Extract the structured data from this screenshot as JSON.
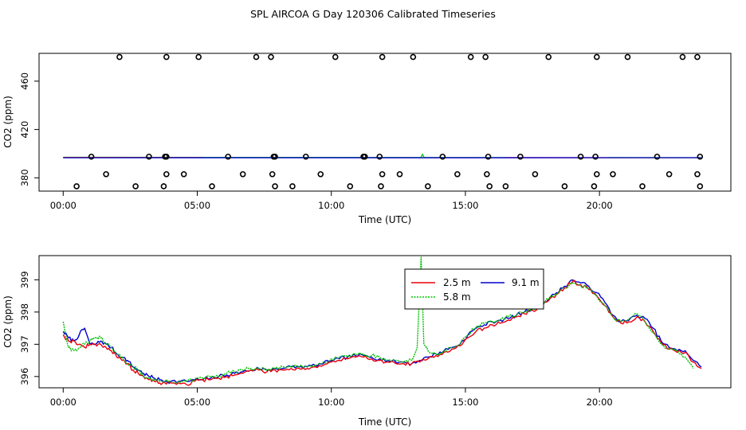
{
  "title": "SPL AIRCOA G  Day 120306  Calibrated Timeseries",
  "colors": {
    "red": "#e8000b",
    "green": "#00c000",
    "blue": "#0000d0",
    "markers": "#000000"
  },
  "chart_data": [
    {
      "type": "scatter",
      "name": "top-panel",
      "xlabel": "Time (UTC)",
      "ylabel": "CO2 (ppm)",
      "xlim": [
        -0.9,
        24.9
      ],
      "ylim": [
        369,
        483
      ],
      "xticks": [
        0,
        5,
        10,
        15,
        20
      ],
      "xtick_labels": [
        "00:00",
        "05:00",
        "10:00",
        "15:00",
        "20:00"
      ],
      "yticks": [
        380,
        420,
        460
      ],
      "ytick_labels": [
        "380",
        "420",
        "460"
      ],
      "calibration_points": [
        {
          "level": 480,
          "t": [
            2.1,
            3.85,
            5.05,
            7.2,
            7.75,
            10.15,
            11.9,
            13.05,
            15.2,
            15.75,
            18.1,
            19.9,
            21.05,
            23.1,
            23.65
          ]
        },
        {
          "level": 397.5,
          "t": [
            1.05,
            3.2,
            3.8,
            3.85,
            6.15,
            7.85,
            7.9,
            9.05,
            11.2,
            11.25,
            11.8,
            14.15,
            15.85,
            17.05,
            19.3,
            19.85,
            22.15,
            23.75
          ]
        },
        {
          "level": 383,
          "t": [
            1.6,
            3.85,
            4.5,
            6.7,
            7.8,
            9.6,
            11.9,
            12.55,
            14.7,
            15.8,
            17.6,
            19.9,
            20.5,
            22.6,
            23.65
          ]
        },
        {
          "level": 373,
          "t": [
            0.5,
            2.7,
            3.75,
            5.55,
            7.9,
            8.55,
            10.7,
            11.85,
            13.6,
            15.9,
            16.5,
            18.7,
            19.8,
            21.6,
            23.75
          ]
        }
      ],
      "series_level": 397,
      "series_spike": {
        "t": 13.4,
        "value": 399.5
      }
    },
    {
      "type": "line",
      "name": "bottom-panel",
      "xlabel": "Time (UTC)",
      "ylabel": "CO2 (ppm)",
      "xlim": [
        -0.9,
        24.9
      ],
      "ylim": [
        395.65,
        399.75
      ],
      "xticks": [
        0,
        5,
        10,
        15,
        20
      ],
      "xtick_labels": [
        "00:00",
        "05:00",
        "10:00",
        "15:00",
        "20:00"
      ],
      "yticks": [
        396,
        397,
        398,
        399
      ],
      "ytick_labels": [
        "396",
        "397",
        "398",
        "399"
      ],
      "legend": [
        {
          "label": "2.5 m",
          "color": "#e8000b"
        },
        {
          "label": "5.8 m",
          "color": "#00c000"
        },
        {
          "label": "9.1 m",
          "color": "#0000d0"
        }
      ],
      "series": [
        {
          "name": "9.1 m",
          "color": "#0000d0",
          "t": [
            0,
            0.2,
            0.4,
            0.6,
            0.8,
            1,
            1.2,
            1.4,
            1.6,
            1.8,
            2,
            2.2,
            2.4,
            2.6,
            2.8,
            3,
            3.2,
            3.4,
            3.6,
            3.8,
            4,
            4.3,
            4.6,
            4.9,
            5.2,
            5.5,
            5.8,
            6.1,
            6.4,
            6.7,
            7,
            7.3,
            7.6,
            7.9,
            8.2,
            8.5,
            8.8,
            9.1,
            9.4,
            9.7,
            10,
            10.3,
            10.6,
            10.9,
            11.2,
            11.5,
            11.8,
            12.1,
            12.4,
            12.7,
            13,
            13.3,
            13.6,
            13.9,
            14.2,
            14.5,
            14.8,
            15.1,
            15.4,
            15.7,
            16,
            16.3,
            16.6,
            16.9,
            17.2,
            17.5,
            17.8,
            18.1,
            18.4,
            18.7,
            19,
            19.3,
            19.6,
            19.9,
            20.2,
            20.5,
            20.8,
            21.1,
            21.4,
            21.7,
            22,
            22.3,
            22.6,
            22.9,
            23.2,
            23.5,
            23.8
          ],
          "v": [
            397.4,
            397.2,
            397.1,
            397.3,
            397.5,
            397.0,
            397.0,
            397.1,
            397.0,
            396.9,
            396.7,
            396.6,
            396.5,
            396.3,
            396.2,
            396.1,
            396.0,
            395.95,
            395.9,
            395.85,
            395.85,
            395.85,
            395.85,
            395.9,
            395.9,
            395.95,
            396.0,
            396.05,
            396.1,
            396.15,
            396.2,
            396.25,
            396.2,
            396.25,
            396.25,
            396.3,
            396.3,
            396.3,
            396.35,
            396.4,
            396.5,
            396.55,
            396.6,
            396.65,
            396.65,
            396.6,
            396.55,
            396.5,
            396.45,
            396.45,
            396.4,
            396.5,
            396.6,
            396.7,
            396.8,
            396.9,
            397.0,
            397.3,
            397.5,
            397.6,
            397.7,
            397.75,
            397.8,
            397.9,
            398.0,
            398.1,
            398.2,
            398.4,
            398.6,
            398.8,
            399.0,
            398.9,
            398.8,
            398.6,
            398.3,
            397.9,
            397.7,
            397.75,
            397.9,
            397.8,
            397.5,
            397.1,
            396.9,
            396.8,
            396.8,
            396.5,
            396.3
          ],
          "noise": 0.12,
          "seed": 7
        },
        {
          "name": "2.5 m",
          "color": "#e8000b",
          "t": [
            0,
            0.2,
            0.4,
            0.6,
            0.8,
            1,
            1.2,
            1.4,
            1.6,
            1.8,
            2,
            2.2,
            2.4,
            2.6,
            2.8,
            3,
            3.2,
            3.4,
            3.6,
            3.8,
            4,
            4.3,
            4.6,
            4.9,
            5.2,
            5.5,
            5.8,
            6.1,
            6.4,
            6.7,
            7,
            7.3,
            7.6,
            7.9,
            8.2,
            8.5,
            8.8,
            9.1,
            9.4,
            9.7,
            10,
            10.3,
            10.6,
            10.9,
            11.2,
            11.5,
            11.8,
            12.1,
            12.4,
            12.7,
            13,
            13.3,
            13.6,
            13.9,
            14.2,
            14.5,
            14.8,
            15.1,
            15.4,
            15.7,
            16,
            16.3,
            16.6,
            16.9,
            17.2,
            17.5,
            17.8,
            18.1,
            18.4,
            18.7,
            19,
            19.3,
            19.6,
            19.9,
            20.2,
            20.5,
            20.8,
            21.1,
            21.4,
            21.7,
            22,
            22.3,
            22.6,
            22.9,
            23.2,
            23.5,
            23.8
          ],
          "v": [
            397.3,
            397.1,
            397.1,
            397.0,
            396.9,
            397.0,
            397.0,
            397.0,
            396.9,
            396.8,
            396.6,
            396.5,
            396.4,
            396.2,
            396.1,
            396.0,
            395.9,
            395.85,
            395.8,
            395.8,
            395.8,
            395.8,
            395.75,
            395.85,
            395.9,
            395.9,
            395.95,
            396.0,
            396.05,
            396.1,
            396.2,
            396.2,
            396.15,
            396.2,
            396.2,
            396.25,
            396.25,
            396.25,
            396.3,
            396.35,
            396.45,
            396.5,
            396.55,
            396.6,
            396.6,
            396.55,
            396.5,
            396.45,
            396.4,
            396.4,
            396.4,
            396.45,
            396.55,
            396.65,
            396.75,
            396.85,
            396.95,
            397.2,
            397.4,
            397.5,
            397.6,
            397.65,
            397.75,
            397.85,
            397.95,
            398.05,
            398.15,
            398.35,
            398.55,
            398.75,
            398.95,
            398.85,
            398.7,
            398.5,
            398.2,
            397.85,
            397.65,
            397.7,
            397.85,
            397.7,
            397.4,
            397.05,
            396.85,
            396.75,
            396.75,
            396.45,
            396.25
          ],
          "noise": 0.12,
          "seed": 19
        },
        {
          "name": "5.8 m",
          "color": "#00c000",
          "dashed": true,
          "t": [
            0,
            0.2,
            0.4,
            0.6,
            0.8,
            1,
            1.2,
            1.4,
            1.6,
            1.8,
            2,
            2.2,
            2.4,
            2.6,
            2.8,
            3,
            3.2,
            3.4,
            3.6,
            3.8,
            4,
            4.3,
            4.6,
            4.9,
            5.2,
            5.5,
            5.8,
            6.1,
            6.4,
            6.7,
            7,
            7.3,
            7.6,
            7.9,
            8.2,
            8.5,
            8.8,
            9.1,
            9.4,
            9.7,
            10,
            10.3,
            10.6,
            10.9,
            11.2,
            11.5,
            11.8,
            12.1,
            12.4,
            12.7,
            13,
            13.2,
            13.35,
            13.45,
            13.6,
            13.9,
            14.2,
            14.5,
            14.8,
            15.1,
            15.4,
            15.7,
            16,
            16.3,
            16.6,
            16.9,
            17.2,
            17.5,
            17.8,
            18.1,
            18.4,
            18.7,
            19,
            19.3,
            19.6,
            19.9,
            20.2,
            20.5,
            20.8,
            21.1,
            21.4,
            21.7,
            22,
            22.3,
            22.6,
            22.9,
            23.2,
            23.5
          ],
          "v": [
            397.7,
            396.9,
            396.8,
            396.9,
            397.0,
            397.1,
            397.2,
            397.2,
            397.0,
            396.9,
            396.7,
            396.6,
            396.4,
            396.3,
            396.2,
            396.0,
            395.95,
            395.9,
            395.85,
            395.85,
            395.85,
            395.85,
            395.85,
            395.9,
            395.95,
            396.0,
            396.0,
            396.1,
            396.15,
            396.2,
            396.25,
            396.25,
            396.2,
            396.25,
            396.3,
            396.3,
            396.3,
            396.3,
            396.35,
            396.45,
            396.55,
            396.6,
            396.65,
            396.7,
            396.7,
            396.65,
            396.6,
            396.5,
            396.5,
            396.45,
            396.5,
            396.9,
            399.7,
            397.0,
            396.8,
            396.7,
            396.8,
            396.9,
            397.0,
            397.3,
            397.55,
            397.65,
            397.7,
            397.75,
            397.85,
            397.9,
            398.0,
            398.1,
            398.2,
            398.4,
            398.55,
            398.75,
            398.9,
            398.8,
            398.75,
            398.5,
            398.2,
            397.85,
            397.7,
            397.8,
            397.95,
            397.7,
            397.35,
            397.0,
            396.85,
            396.8,
            396.6,
            396.25
          ],
          "noise": 0.12,
          "seed": 31
        }
      ]
    }
  ]
}
